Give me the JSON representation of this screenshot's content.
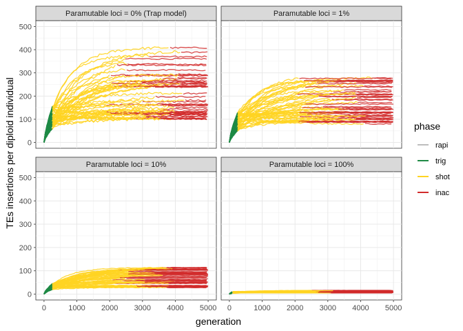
{
  "chart_data": {
    "type": "line",
    "xlabel": "generation",
    "ylabel": "TEs insertions per diploid individual",
    "xlim": [
      0,
      5000
    ],
    "ylim": [
      0,
      500
    ],
    "x_ticks": [
      0,
      1000,
      2000,
      3000,
      4000,
      5000
    ],
    "y_ticks": [
      0,
      100,
      200,
      300,
      400,
      500
    ],
    "grid": true,
    "legend": {
      "title": "phase",
      "position": "right",
      "entries": [
        {
          "label": "rapi",
          "color": "#bdbdbd"
        },
        {
          "label": "trig",
          "color": "#1e8a45"
        },
        {
          "label": "shot",
          "color": "#ffd422"
        },
        {
          "label": "inac",
          "color": "#d12a2a"
        }
      ]
    },
    "panels": [
      {
        "title": "Paramutable loci = 0% (Trap model)",
        "trig_end": {
          "x": 250,
          "y": [
            60,
            155
          ]
        },
        "shot_to_inac_x_range": [
          1800,
          4300
        ],
        "trajectories_final_y": [
          100,
          415
        ],
        "max_y": 435,
        "lines": 50
      },
      {
        "title": "Paramutable loci = 1%",
        "trig_end": {
          "x": 250,
          "y": [
            50,
            130
          ]
        },
        "shot_to_inac_x_range": [
          2000,
          4600
        ],
        "trajectories_final_y": [
          75,
          295
        ],
        "max_y": 300,
        "lines": 50
      },
      {
        "title": "Paramutable loci = 10%",
        "trig_end": {
          "x": 250,
          "y": [
            20,
            45
          ]
        },
        "shot_to_inac_x_range": [
          2000,
          4000
        ],
        "trajectories_final_y": [
          28,
          125
        ],
        "max_y": 130,
        "lines": 50
      },
      {
        "title": "Paramutable loci = 100%",
        "trig_end": {
          "x": 100,
          "y": [
            3,
            12
          ]
        },
        "shot_to_inac_x_range": [
          2400,
          3200
        ],
        "trajectories_final_y": [
          5,
          18
        ],
        "max_y": 22,
        "lines": 40
      }
    ]
  }
}
